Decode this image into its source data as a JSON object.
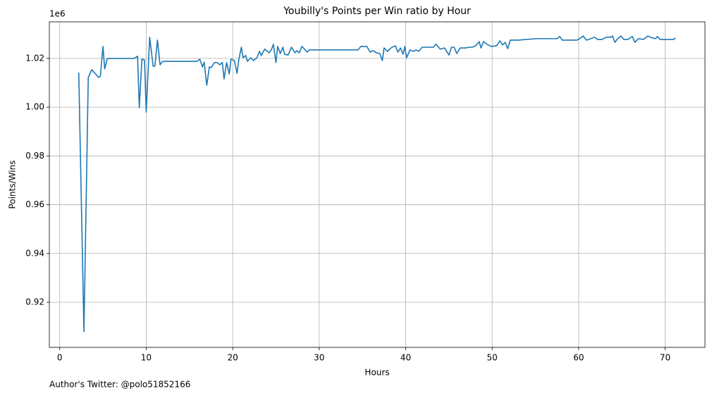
{
  "chart_data": {
    "type": "line",
    "title": "Youbilly's Points per Win ratio by Hour",
    "x_label": "Hours",
    "y_label": "Points/Wins",
    "y_offset_label": "1e6",
    "caption": "Author's Twitter: @polo51852166",
    "color": "#1f77b4",
    "grid": true,
    "xlim": [
      -1.2,
      74.6
    ],
    "xticks": [
      0,
      10,
      20,
      30,
      40,
      50,
      60,
      70
    ],
    "ylim": [
      0.9015,
      1.035
    ],
    "yticks": [
      0.92,
      0.94,
      0.96,
      0.98,
      {
        "value": 1,
        "label": "1.00"
      },
      1.02
    ],
    "x": [
      2.2,
      2.8,
      3.3,
      3.7,
      4.2,
      4.5,
      4.7,
      5.0,
      5.2,
      5.5,
      8.6,
      9.0,
      9.2,
      9.5,
      9.8,
      10.0,
      10.4,
      10.8,
      11.0,
      11.3,
      11.6,
      11.9,
      15.9,
      16.2,
      16.5,
      16.7,
      17.0,
      17.3,
      17.5,
      17.9,
      18.2,
      18.5,
      18.8,
      19.0,
      19.3,
      19.6,
      19.8,
      20.2,
      20.5,
      20.7,
      21.0,
      21.2,
      21.5,
      21.7,
      22.1,
      22.4,
      22.8,
      23.1,
      23.3,
      23.7,
      24.2,
      24.5,
      24.7,
      25.0,
      25.2,
      25.5,
      25.8,
      26.0,
      26.4,
      26.8,
      27.2,
      27.4,
      27.7,
      28.0,
      28.3,
      28.6,
      28.9,
      34.5,
      34.8,
      35.5,
      35.9,
      36.2,
      36.6,
      37.0,
      37.3,
      37.5,
      37.9,
      38.3,
      38.8,
      39.1,
      39.4,
      39.7,
      39.9,
      40.1,
      40.5,
      40.9,
      41.2,
      41.5,
      41.9,
      43.2,
      43.5,
      44.0,
      44.5,
      45.0,
      45.3,
      45.6,
      45.9,
      46.3,
      46.9,
      47.4,
      47.7,
      48.1,
      48.5,
      48.7,
      49.0,
      49.4,
      49.9,
      50.5,
      50.9,
      51.2,
      51.5,
      51.8,
      52.1,
      52.5,
      53.0,
      55.1,
      57.5,
      57.8,
      58.1,
      59.8,
      60.1,
      60.5,
      60.9,
      61.4,
      61.8,
      62.2,
      62.7,
      63.2,
      63.7,
      63.9,
      64.2,
      64.5,
      64.9,
      65.2,
      65.7,
      66.2,
      66.5,
      66.9,
      67.5,
      68.0,
      68.5,
      68.9,
      69.1,
      69.4,
      71.0,
      71.2
    ],
    "values": [
      1.0142,
      0.908,
      1.0122,
      1.0154,
      1.0134,
      1.0122,
      1.0128,
      1.0249,
      1.0157,
      1.02,
      1.02,
      1.0209,
      0.9998,
      1.0197,
      1.0194,
      0.998,
      1.0287,
      1.0168,
      1.0168,
      1.0275,
      1.0174,
      1.0188,
      1.0188,
      1.0197,
      1.0165,
      1.0185,
      1.009,
      1.0165,
      1.0162,
      1.0183,
      1.0183,
      1.0174,
      1.0183,
      1.0116,
      1.0183,
      1.0136,
      1.0197,
      1.0191,
      1.0139,
      1.0194,
      1.0246,
      1.0203,
      1.0212,
      1.0188,
      1.0203,
      1.0191,
      1.0203,
      1.0229,
      1.0212,
      1.0238,
      1.0223,
      1.0238,
      1.0258,
      1.0183,
      1.0249,
      1.022,
      1.0246,
      1.0217,
      1.0214,
      1.0246,
      1.0223,
      1.0232,
      1.0223,
      1.0249,
      1.0238,
      1.0226,
      1.0235,
      1.0235,
      1.0249,
      1.0249,
      1.0226,
      1.0232,
      1.0223,
      1.022,
      1.0191,
      1.0243,
      1.0229,
      1.0243,
      1.0252,
      1.0226,
      1.0243,
      1.0217,
      1.0249,
      1.0203,
      1.0235,
      1.0229,
      1.0235,
      1.0229,
      1.0246,
      1.0246,
      1.0258,
      1.0238,
      1.0243,
      1.0214,
      1.0246,
      1.0246,
      1.022,
      1.0243,
      1.0243,
      1.0246,
      1.0246,
      1.0252,
      1.0269,
      1.0243,
      1.0269,
      1.0258,
      1.0249,
      1.0252,
      1.0272,
      1.0255,
      1.0266,
      1.024,
      1.0275,
      1.0275,
      1.0275,
      1.0281,
      1.0281,
      1.029,
      1.0275,
      1.0275,
      1.0281,
      1.0292,
      1.0275,
      1.0281,
      1.0287,
      1.0278,
      1.0278,
      1.0287,
      1.0287,
      1.0292,
      1.0266,
      1.0281,
      1.0292,
      1.0278,
      1.0278,
      1.029,
      1.0266,
      1.0281,
      1.0278,
      1.0292,
      1.0284,
      1.0281,
      1.029,
      1.0278,
      1.0278,
      1.0284
    ]
  }
}
